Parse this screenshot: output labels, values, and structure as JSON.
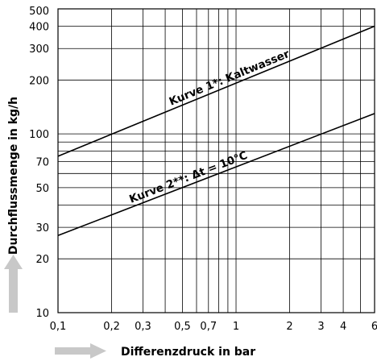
{
  "chart_data": {
    "type": "line",
    "xscale": "log",
    "yscale": "log",
    "xlim": [
      0.1,
      6
    ],
    "ylim": [
      10,
      500
    ],
    "grid": true,
    "xlabel": "Differenzdruck in bar",
    "ylabel": "Durchflussmenge in kg/h",
    "xticks": [
      "0,1",
      "0,2",
      "0,3",
      "0,5",
      "0,7",
      "1",
      "2",
      "3",
      "4",
      "6"
    ],
    "xtick_values": [
      0.1,
      0.2,
      0.3,
      0.5,
      0.7,
      1,
      2,
      3,
      4,
      6
    ],
    "xgrid_values": [
      0.1,
      0.2,
      0.3,
      0.4,
      0.5,
      0.6,
      0.7,
      0.8,
      0.9,
      1,
      2,
      3,
      4,
      5,
      6
    ],
    "yticks": [
      "10",
      "20",
      "30",
      "50",
      "70",
      "100",
      "200",
      "300",
      "400",
      "500"
    ],
    "ytick_values": [
      10,
      20,
      30,
      50,
      70,
      100,
      200,
      300,
      400,
      500
    ],
    "ygrid_values": [
      10,
      20,
      30,
      40,
      50,
      60,
      70,
      80,
      90,
      100,
      200,
      300,
      400,
      500
    ],
    "series": [
      {
        "name": "Kurve 1*: Kaltwasser",
        "x": [
          0.1,
          6
        ],
        "y": [
          75,
          400
        ]
      },
      {
        "name": "Kurve 2**: Δt = 10°C",
        "x": [
          0.1,
          6
        ],
        "y": [
          27,
          130
        ]
      }
    ],
    "colors": {
      "line": "#000000",
      "grid": "#000000",
      "arrow": "#c8c8c8"
    }
  }
}
